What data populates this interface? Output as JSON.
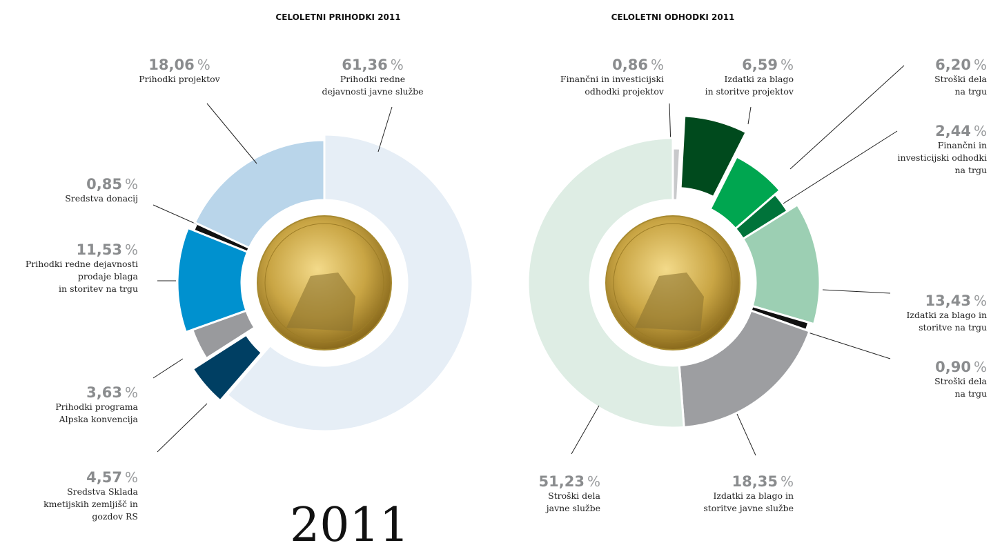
{
  "chart_data": [
    {
      "type": "donut",
      "title": "CELOLETNI PRIHODKI 2011",
      "unit": "%",
      "categories": [
        "Prihodki redne\ndejavnosti javne službe",
        "Sredstva Sklada\nkmetijskih zemljišč in\ngozdov RS",
        "Prihodki programa\nAlpska konvencija",
        "Prihodki redne dejavnosti\nprodaje blaga\nin storitev na trgu",
        "Sredstva donacij",
        "Prihodki projektov"
      ],
      "values": [
        61.36,
        4.57,
        3.63,
        11.53,
        0.85,
        18.06
      ],
      "value_labels": [
        "61,36",
        "4,57",
        "3,63",
        "11,53",
        "0,85",
        "18,06"
      ],
      "colors": [
        "#e6eef6",
        "#003f63",
        "#999a9d",
        "#0091cf",
        "#111111",
        "#b9d5ea"
      ]
    },
    {
      "type": "donut",
      "title": "CELOLETNI ODHODKI 2011",
      "unit": "%",
      "categories": [
        "Finančni in investicijski\nodhodki projektov",
        "Izdatki za blago\nin storitve projektov",
        "Stroški dela\nna trgu",
        "Finančni in\ninvesticijski odhodki\nna trgu",
        "Izdatki za blago in\nstoritve na trgu",
        "Stroški dela\nna trgu",
        "Izdatki za blago in\nstoritve javne službe",
        "Stroški dela\njavne službe"
      ],
      "values": [
        0.86,
        6.59,
        6.2,
        2.44,
        13.43,
        0.9,
        18.35,
        51.23
      ],
      "value_labels": [
        "0,86",
        "6,59",
        "6,20",
        "2,44",
        "13,43",
        "0,90",
        "18,35",
        "51,23"
      ],
      "colors": [
        "#c8c9cb",
        "#004a1d",
        "#00a650",
        "#00733a",
        "#9ccfb3",
        "#111111",
        "#9d9ea1",
        "#deede4"
      ]
    }
  ],
  "year_label": "2011"
}
